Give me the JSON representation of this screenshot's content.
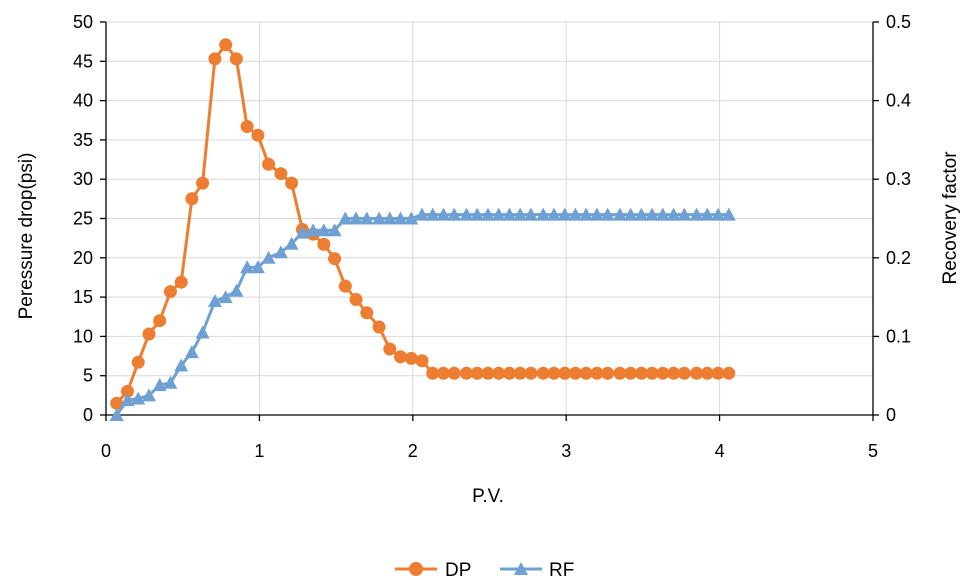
{
  "chart_data": {
    "type": "line",
    "title": "",
    "xlabel": "P.V.",
    "ylabel": "Peressure drop(psi)",
    "y2label": "Recovery factor",
    "xlim": [
      0,
      5
    ],
    "ylim": [
      0,
      50
    ],
    "y2lim": [
      0,
      0.5
    ],
    "xticks": [
      0,
      1,
      2,
      3,
      4,
      5
    ],
    "yticks": [
      0,
      5,
      10,
      15,
      20,
      25,
      30,
      35,
      40,
      45,
      50
    ],
    "y2ticks": [
      0,
      0.1,
      0.2,
      0.3,
      0.4,
      0.5
    ],
    "xtick_labels": [
      "0",
      "1",
      "2",
      "3",
      "4",
      "5"
    ],
    "ytick_labels": [
      "0",
      "5",
      "10",
      "15",
      "20",
      "25",
      "30",
      "35",
      "40",
      "45",
      "50"
    ],
    "y2tick_labels": [
      "0",
      "0.1",
      "0.2",
      "0.3",
      "0.4",
      "0.5"
    ],
    "grid": true,
    "legend": "bottom",
    "series": [
      {
        "name": "DP",
        "axis": "left",
        "marker": "circle",
        "color": "#ED7D31",
        "x": [
          0.07,
          0.14,
          0.21,
          0.28,
          0.35,
          0.42,
          0.49,
          0.56,
          0.63,
          0.71,
          0.78,
          0.85,
          0.92,
          0.99,
          1.06,
          1.14,
          1.21,
          1.28,
          1.35,
          1.42,
          1.49,
          1.56,
          1.63,
          1.7,
          1.78,
          1.85,
          1.92,
          1.99,
          2.06,
          2.13,
          2.2,
          2.27,
          2.35,
          2.42,
          2.49,
          2.56,
          2.63,
          2.7,
          2.77,
          2.85,
          2.92,
          2.99,
          3.06,
          3.13,
          3.2,
          3.27,
          3.35,
          3.42,
          3.49,
          3.56,
          3.63,
          3.7,
          3.77,
          3.85,
          3.92,
          3.99,
          4.06
        ],
        "values": [
          1.5,
          3.0,
          6.7,
          10.3,
          12.0,
          15.7,
          16.9,
          27.5,
          29.5,
          45.3,
          47.1,
          45.3,
          36.7,
          35.6,
          31.9,
          30.7,
          29.5,
          23.6,
          23.0,
          21.7,
          19.9,
          16.4,
          14.7,
          13.0,
          11.2,
          8.4,
          7.4,
          7.2,
          6.9,
          5.3,
          5.3,
          5.3,
          5.3,
          5.3,
          5.3,
          5.3,
          5.3,
          5.3,
          5.3,
          5.3,
          5.3,
          5.3,
          5.3,
          5.3,
          5.3,
          5.3,
          5.3,
          5.3,
          5.3,
          5.3,
          5.3,
          5.3,
          5.3,
          5.3,
          5.3,
          5.3,
          5.3
        ]
      },
      {
        "name": "RF",
        "axis": "right",
        "marker": "triangle",
        "color": "#6FA0D4",
        "x": [
          0.07,
          0.14,
          0.21,
          0.28,
          0.35,
          0.42,
          0.49,
          0.56,
          0.63,
          0.71,
          0.78,
          0.85,
          0.92,
          0.99,
          1.06,
          1.14,
          1.21,
          1.28,
          1.35,
          1.42,
          1.49,
          1.56,
          1.63,
          1.7,
          1.78,
          1.85,
          1.92,
          1.99,
          2.06,
          2.13,
          2.2,
          2.27,
          2.35,
          2.42,
          2.49,
          2.56,
          2.63,
          2.7,
          2.77,
          2.85,
          2.92,
          2.99,
          3.06,
          3.13,
          3.2,
          3.27,
          3.35,
          3.42,
          3.49,
          3.56,
          3.63,
          3.7,
          3.77,
          3.85,
          3.92,
          3.99,
          4.06
        ],
        "values": [
          0.0,
          0.019,
          0.021,
          0.025,
          0.038,
          0.041,
          0.063,
          0.08,
          0.105,
          0.145,
          0.15,
          0.158,
          0.188,
          0.188,
          0.2,
          0.207,
          0.218,
          0.232,
          0.235,
          0.235,
          0.235,
          0.25,
          0.25,
          0.25,
          0.25,
          0.25,
          0.25,
          0.25,
          0.255,
          0.255,
          0.255,
          0.255,
          0.255,
          0.255,
          0.255,
          0.255,
          0.255,
          0.255,
          0.255,
          0.255,
          0.255,
          0.255,
          0.255,
          0.255,
          0.255,
          0.255,
          0.255,
          0.255,
          0.255,
          0.255,
          0.255,
          0.255,
          0.255,
          0.255,
          0.255,
          0.255,
          0.255
        ]
      }
    ]
  }
}
